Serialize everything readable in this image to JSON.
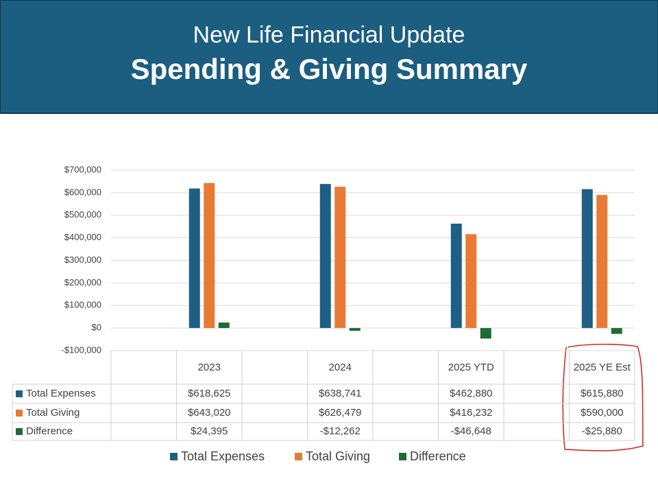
{
  "header": {
    "subtitle": "New Life Financial Update",
    "title": "Spending & Giving Summary"
  },
  "chart_data": {
    "type": "bar",
    "categories": [
      null,
      "2023",
      null,
      "2024",
      null,
      "2025 YTD",
      null,
      "2025 YE Est"
    ],
    "series": [
      {
        "name": "Total Expenses",
        "color": "#1f5f85",
        "values": [
          null,
          618625,
          null,
          638741,
          null,
          462880,
          null,
          615880
        ],
        "value_labels": [
          null,
          "$618,625",
          null,
          "$638,741",
          null,
          "$462,880",
          null,
          "$615,880"
        ]
      },
      {
        "name": "Total Giving",
        "color": "#e87a35",
        "values": [
          null,
          643020,
          null,
          626479,
          null,
          416232,
          null,
          590000
        ],
        "value_labels": [
          null,
          "$643,020",
          null,
          "$626,479",
          null,
          "$416,232",
          null,
          "$590,000"
        ]
      },
      {
        "name": "Difference",
        "color": "#1f6b35",
        "values": [
          null,
          24395,
          null,
          -12262,
          null,
          -46648,
          null,
          -25880
        ],
        "value_labels": [
          null,
          "$24,395",
          null,
          "-$12,262",
          null,
          "-$46,648",
          null,
          "-$25,880"
        ]
      }
    ],
    "ylim": [
      -100000,
      700000
    ],
    "yticks": [
      {
        "value": -100000,
        "label": "-$100,000"
      },
      {
        "value": 0,
        "label": "$0"
      },
      {
        "value": 100000,
        "label": "$100,000"
      },
      {
        "value": 200000,
        "label": "$200,000"
      },
      {
        "value": 300000,
        "label": "$300,000"
      },
      {
        "value": 400000,
        "label": "$400,000"
      },
      {
        "value": 500000,
        "label": "$500,000"
      },
      {
        "value": 600000,
        "label": "$600,000"
      },
      {
        "value": 700000,
        "label": "$700,000"
      }
    ],
    "grid": true
  }
}
